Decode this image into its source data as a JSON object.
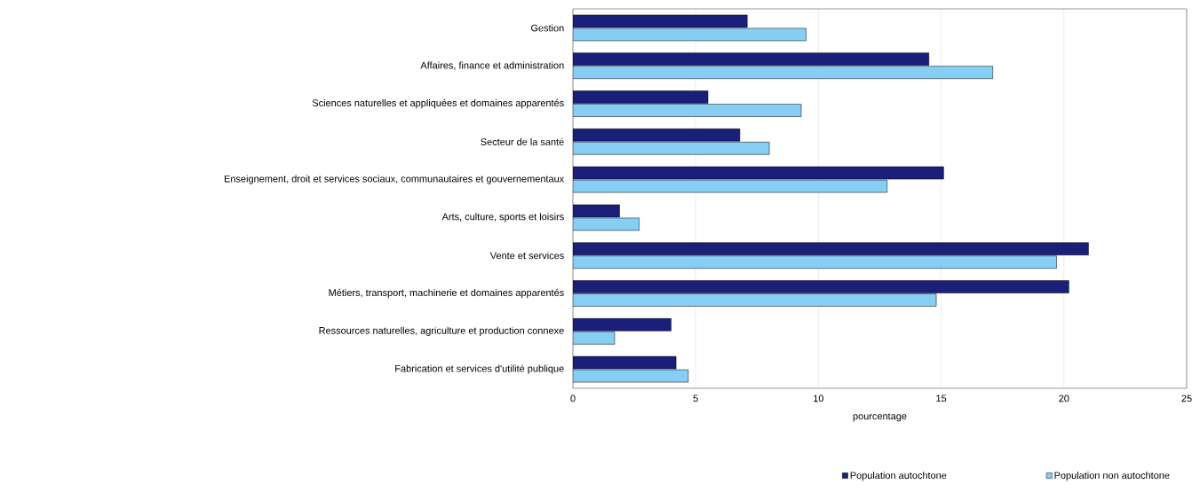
{
  "chart_data": {
    "type": "bar",
    "orientation": "horizontal",
    "xlabel": "pourcentage",
    "categories": [
      "Gestion",
      "Affaires, finance et administration",
      "Sciences naturelles et appliquées et domaines apparentés",
      "Secteur de la santé",
      "Enseignement, droit et services sociaux, communautaires et gouvernementaux",
      "Arts, culture, sports et loisirs",
      "Vente et services",
      "Métiers, transport, machinerie et domaines apparentés",
      "Ressources naturelles, agriculture et production connexe",
      "Fabrication et services d'utilité publique"
    ],
    "series": [
      {
        "name": "Population autochtone",
        "color": "#1a1f7a",
        "values": [
          7.1,
          14.5,
          5.5,
          6.8,
          15.1,
          1.9,
          21.0,
          20.2,
          4.0,
          4.2
        ]
      },
      {
        "name": "Population non autochtone",
        "color": "#87cef5",
        "values": [
          9.5,
          17.1,
          9.3,
          8.0,
          12.8,
          2.7,
          19.7,
          14.8,
          1.7,
          4.7
        ]
      }
    ],
    "xlim": [
      0,
      25
    ],
    "xticks": [
      0,
      5,
      10,
      15,
      20,
      25
    ],
    "grid": "x",
    "legend": "bottom"
  }
}
